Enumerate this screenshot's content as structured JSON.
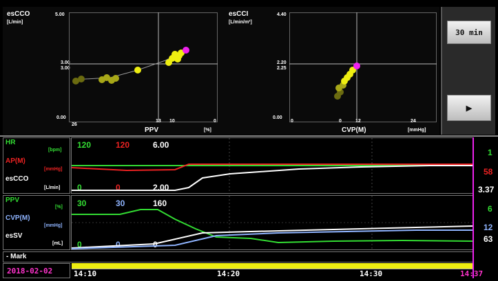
{
  "colors": {
    "green": "#33dd33",
    "red": "#ee2222",
    "white": "#ffffff",
    "blue": "#8fb4ff",
    "magenta": "#ee22ee",
    "yellow": "#eeee11",
    "date": "#ff33cc"
  },
  "scatter_left": {
    "ylabel": "esCCO",
    "yunit": "[L/min]",
    "ytop": "5.00",
    "ymid_a": "3.00",
    "ymid_b": "3.00",
    "ybottom": "0.00",
    "xlabel": "PPV",
    "xunit": "[%]",
    "xtick_left": "26",
    "xtick_mid": "13",
    "xtick_mid2": "10",
    "xtick_right": "0"
  },
  "scatter_right": {
    "ylabel": "esCCI",
    "yunit": "[L/min/m²]",
    "ytop": "4.40",
    "ymid_a": "2.20",
    "ymid_b": "2.25",
    "ybottom": "0.00",
    "xlabel": "CVP(M)",
    "xunit": "[mmHg]",
    "xtick_left": "0",
    "xtick_mid": "0",
    "xtick_mid2": "12",
    "xtick_right": "24"
  },
  "buttons": {
    "range": "30 min",
    "play": "▶"
  },
  "trend1": {
    "hr_label": "HR",
    "hr_unit": "[bpm]",
    "ap_label": "AP(M)",
    "ap_unit": "[mmHg]",
    "esco_label": "esCCO",
    "esco_unit": "[L/min]",
    "scale_green_top": "120",
    "scale_red_top": "120",
    "scale_white_top": "6.00",
    "scale_green_bot": "0",
    "scale_red_bot": "0",
    "scale_white_bot": "2.00",
    "val_green": "1",
    "val_red": "58",
    "val_white": "3.37"
  },
  "trend2": {
    "ppv_label": "PPV",
    "ppv_unit": "[%]",
    "cvp_label": "CVP(M)",
    "cvp_unit": "[mmHg]",
    "essv_label": "esSV",
    "essv_unit": "[mL]",
    "scale_green_top": "30",
    "scale_blue_top": "30",
    "scale_white_top": "160",
    "scale_green_bot": "0",
    "scale_blue_bot": "0",
    "scale_white_bot": "0",
    "val_green": "6",
    "val_blue": "12",
    "val_white": "63"
  },
  "mark_label": "- Mark",
  "date": "2018-02-02",
  "times": [
    "14:10",
    "14:20",
    "14:30",
    "14:37"
  ]
}
